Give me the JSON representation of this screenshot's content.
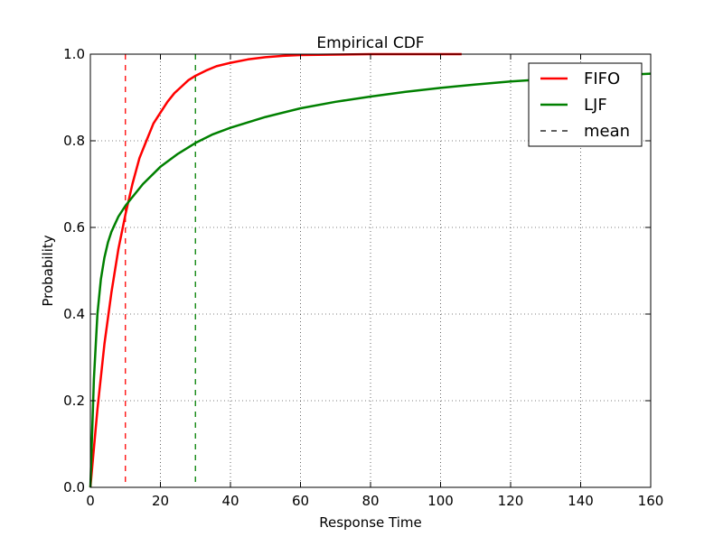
{
  "chart_data": {
    "type": "line",
    "title": "Empirical CDF",
    "xlabel": "Response Time",
    "ylabel": "Probability",
    "xlim": [
      0,
      160
    ],
    "ylim": [
      0,
      1.0
    ],
    "xticks": [
      0,
      20,
      40,
      60,
      80,
      100,
      120,
      140,
      160
    ],
    "xtick_labels": [
      "0",
      "20",
      "40",
      "60",
      "80",
      "100",
      "120",
      "140",
      "160"
    ],
    "yticks": [
      0,
      0.2,
      0.4,
      0.6,
      0.8,
      1.0
    ],
    "ytick_labels": [
      "0.0",
      "0.2",
      "0.4",
      "0.6",
      "0.8",
      "1.0"
    ],
    "grid": true,
    "legend_position": "top-right",
    "series": [
      {
        "name": "FIFO",
        "color": "#ff0000",
        "style": "solid",
        "x": [
          0,
          2,
          4,
          6,
          8,
          10,
          12,
          14,
          16,
          18,
          20,
          22,
          24,
          26,
          28,
          30,
          33,
          36,
          40,
          45,
          50,
          55,
          60,
          70,
          80,
          90,
          100,
          106
        ],
        "y": [
          0,
          0.18,
          0.33,
          0.45,
          0.55,
          0.63,
          0.7,
          0.76,
          0.8,
          0.84,
          0.865,
          0.89,
          0.91,
          0.925,
          0.94,
          0.95,
          0.962,
          0.972,
          0.98,
          0.988,
          0.993,
          0.996,
          0.998,
          0.999,
          1.0,
          1.0,
          1.0,
          1.0
        ]
      },
      {
        "name": "LJF",
        "color": "#008000",
        "style": "solid",
        "x": [
          0,
          1,
          2,
          3,
          4,
          5,
          6,
          8,
          10,
          12,
          15,
          20,
          25,
          30,
          35,
          40,
          50,
          60,
          70,
          80,
          90,
          100,
          110,
          120,
          130,
          140,
          150,
          160
        ],
        "y": [
          0,
          0.25,
          0.4,
          0.48,
          0.53,
          0.565,
          0.59,
          0.625,
          0.65,
          0.67,
          0.7,
          0.74,
          0.77,
          0.795,
          0.815,
          0.83,
          0.855,
          0.875,
          0.89,
          0.902,
          0.913,
          0.922,
          0.93,
          0.937,
          0.942,
          0.947,
          0.951,
          0.955
        ]
      }
    ],
    "mean_lines": [
      {
        "series": "FIFO",
        "x": 10,
        "color": "#ff0000"
      },
      {
        "series": "LJF",
        "x": 30,
        "color": "#008000"
      }
    ],
    "legend": [
      {
        "label": "FIFO",
        "color": "#ff0000",
        "style": "solid"
      },
      {
        "label": "LJF",
        "color": "#008000",
        "style": "solid"
      },
      {
        "label": "mean",
        "color": "#000000",
        "style": "dashed"
      }
    ]
  }
}
